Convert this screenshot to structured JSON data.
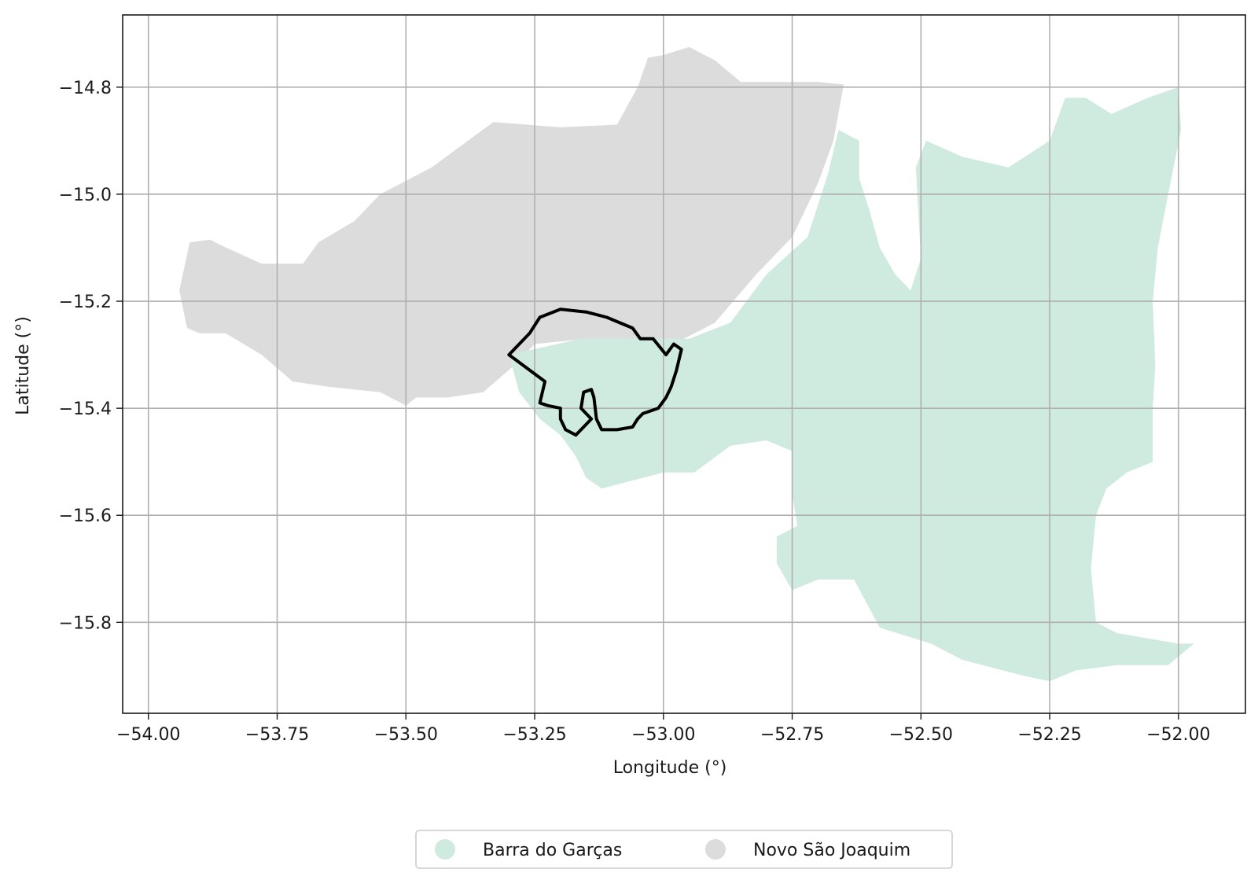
{
  "chart_data": {
    "type": "map",
    "title": "",
    "xlabel": "Longitude (°)",
    "ylabel": "Latitude (°)",
    "xlim": [
      -54.05,
      -51.87
    ],
    "ylim": [
      -15.97,
      -14.665
    ],
    "x_ticks": [
      {
        "value": -54.0,
        "label": "−54.00"
      },
      {
        "value": -53.75,
        "label": "−53.75"
      },
      {
        "value": -53.5,
        "label": "−53.50"
      },
      {
        "value": -53.25,
        "label": "−53.25"
      },
      {
        "value": -53.0,
        "label": "−53.00"
      },
      {
        "value": -52.75,
        "label": "−52.75"
      },
      {
        "value": -52.5,
        "label": "−52.50"
      },
      {
        "value": -52.25,
        "label": "−52.25"
      },
      {
        "value": -52.0,
        "label": "−52.00"
      }
    ],
    "y_ticks": [
      {
        "value": -14.8,
        "label": "−14.8"
      },
      {
        "value": -15.0,
        "label": "−15.0"
      },
      {
        "value": -15.2,
        "label": "−15.2"
      },
      {
        "value": -15.4,
        "label": "−15.4"
      },
      {
        "value": -15.6,
        "label": "−15.6"
      },
      {
        "value": -15.8,
        "label": "−15.8"
      }
    ],
    "grid": true,
    "legend_position": "below plot, centered",
    "regions": [
      {
        "name": "Novo São Joaquim",
        "color": "#dcdcdc",
        "polygon": [
          [
            -53.925,
            -15.25
          ],
          [
            -53.94,
            -15.18
          ],
          [
            -53.92,
            -15.09
          ],
          [
            -53.88,
            -15.085
          ],
          [
            -53.86,
            -15.095
          ],
          [
            -53.78,
            -15.13
          ],
          [
            -53.7,
            -15.13
          ],
          [
            -53.67,
            -15.09
          ],
          [
            -53.6,
            -15.05
          ],
          [
            -53.55,
            -15.0
          ],
          [
            -53.45,
            -14.95
          ],
          [
            -53.33,
            -14.865
          ],
          [
            -53.2,
            -14.875
          ],
          [
            -53.09,
            -14.87
          ],
          [
            -53.05,
            -14.8
          ],
          [
            -53.03,
            -14.745
          ],
          [
            -53.0,
            -14.74
          ],
          [
            -52.95,
            -14.725
          ],
          [
            -52.9,
            -14.75
          ],
          [
            -52.85,
            -14.79
          ],
          [
            -52.7,
            -14.79
          ],
          [
            -52.65,
            -14.795
          ],
          [
            -52.67,
            -14.9
          ],
          [
            -52.7,
            -14.98
          ],
          [
            -52.75,
            -15.08
          ],
          [
            -52.82,
            -15.15
          ],
          [
            -52.9,
            -15.24
          ],
          [
            -52.96,
            -15.27
          ],
          [
            -52.98,
            -15.32
          ],
          [
            -53.07,
            -15.3
          ],
          [
            -53.15,
            -15.27
          ],
          [
            -53.25,
            -15.28
          ],
          [
            -53.29,
            -15.32
          ],
          [
            -53.35,
            -15.37
          ],
          [
            -53.42,
            -15.38
          ],
          [
            -53.48,
            -15.38
          ],
          [
            -53.5,
            -15.395
          ],
          [
            -53.55,
            -15.37
          ],
          [
            -53.65,
            -15.36
          ],
          [
            -53.72,
            -15.35
          ],
          [
            -53.78,
            -15.3
          ],
          [
            -53.85,
            -15.26
          ],
          [
            -53.9,
            -15.26
          ]
        ]
      },
      {
        "name": "Barra do Garças",
        "color": "#cfeadf",
        "polygon": [
          [
            -53.3,
            -15.3
          ],
          [
            -53.16,
            -15.27
          ],
          [
            -53.05,
            -15.27
          ],
          [
            -52.95,
            -15.27
          ],
          [
            -52.87,
            -15.24
          ],
          [
            -52.8,
            -15.15
          ],
          [
            -52.72,
            -15.08
          ],
          [
            -52.68,
            -14.96
          ],
          [
            -52.66,
            -14.88
          ],
          [
            -52.62,
            -14.9
          ],
          [
            -52.62,
            -14.97
          ],
          [
            -52.6,
            -15.03
          ],
          [
            -52.58,
            -15.1
          ],
          [
            -52.55,
            -15.15
          ],
          [
            -52.52,
            -15.18
          ],
          [
            -52.5,
            -15.12
          ],
          [
            -52.51,
            -14.95
          ],
          [
            -52.49,
            -14.9
          ],
          [
            -52.42,
            -14.93
          ],
          [
            -52.33,
            -14.95
          ],
          [
            -52.25,
            -14.9
          ],
          [
            -52.22,
            -14.82
          ],
          [
            -52.18,
            -14.82
          ],
          [
            -52.13,
            -14.85
          ],
          [
            -52.06,
            -14.82
          ],
          [
            -52.0,
            -14.8
          ],
          [
            -51.995,
            -14.88
          ],
          [
            -52.02,
            -15.0
          ],
          [
            -52.04,
            -15.1
          ],
          [
            -52.05,
            -15.2
          ],
          [
            -52.045,
            -15.32
          ],
          [
            -52.05,
            -15.4
          ],
          [
            -52.05,
            -15.5
          ],
          [
            -52.1,
            -15.52
          ],
          [
            -52.14,
            -15.55
          ],
          [
            -52.16,
            -15.6
          ],
          [
            -52.17,
            -15.7
          ],
          [
            -52.16,
            -15.8
          ],
          [
            -52.12,
            -15.82
          ],
          [
            -52.06,
            -15.83
          ],
          [
            -52.0,
            -15.84
          ],
          [
            -51.97,
            -15.84
          ],
          [
            -52.02,
            -15.88
          ],
          [
            -52.12,
            -15.88
          ],
          [
            -52.2,
            -15.89
          ],
          [
            -52.25,
            -15.91
          ],
          [
            -52.3,
            -15.9
          ],
          [
            -52.42,
            -15.87
          ],
          [
            -52.48,
            -15.84
          ],
          [
            -52.58,
            -15.81
          ],
          [
            -52.63,
            -15.72
          ],
          [
            -52.7,
            -15.72
          ],
          [
            -52.75,
            -15.74
          ],
          [
            -52.78,
            -15.69
          ],
          [
            -52.78,
            -15.64
          ],
          [
            -52.74,
            -15.62
          ],
          [
            -52.75,
            -15.56
          ],
          [
            -52.75,
            -15.48
          ],
          [
            -52.8,
            -15.46
          ],
          [
            -52.87,
            -15.47
          ],
          [
            -52.94,
            -15.52
          ],
          [
            -53.0,
            -15.52
          ],
          [
            -53.08,
            -15.54
          ],
          [
            -53.12,
            -15.55
          ],
          [
            -53.15,
            -15.53
          ],
          [
            -53.17,
            -15.49
          ],
          [
            -53.2,
            -15.45
          ],
          [
            -53.24,
            -15.42
          ],
          [
            -53.28,
            -15.37
          ]
        ]
      }
    ],
    "overlay_outlines": [
      {
        "color": "#000000",
        "polygon": [
          [
            -53.3,
            -15.3
          ],
          [
            -53.26,
            -15.26
          ],
          [
            -53.24,
            -15.23
          ],
          [
            -53.2,
            -15.215
          ],
          [
            -53.15,
            -15.22
          ],
          [
            -53.11,
            -15.23
          ],
          [
            -53.06,
            -15.25
          ],
          [
            -53.045,
            -15.27
          ],
          [
            -53.02,
            -15.27
          ],
          [
            -52.995,
            -15.3
          ],
          [
            -52.98,
            -15.28
          ],
          [
            -52.965,
            -15.29
          ],
          [
            -52.975,
            -15.33
          ],
          [
            -52.985,
            -15.36
          ],
          [
            -52.995,
            -15.38
          ],
          [
            -53.01,
            -15.4
          ],
          [
            -53.04,
            -15.41
          ],
          [
            -53.05,
            -15.42
          ],
          [
            -53.06,
            -15.435
          ],
          [
            -53.09,
            -15.44
          ],
          [
            -53.12,
            -15.44
          ],
          [
            -53.13,
            -15.42
          ],
          [
            -53.135,
            -15.38
          ],
          [
            -53.14,
            -15.365
          ],
          [
            -53.155,
            -15.37
          ],
          [
            -53.16,
            -15.4
          ],
          [
            -53.14,
            -15.42
          ],
          [
            -53.16,
            -15.44
          ],
          [
            -53.17,
            -15.45
          ],
          [
            -53.19,
            -15.44
          ],
          [
            -53.2,
            -15.42
          ],
          [
            -53.2,
            -15.4
          ],
          [
            -53.225,
            -15.395
          ],
          [
            -53.24,
            -15.39
          ],
          [
            -53.23,
            -15.35
          ],
          [
            -53.3,
            -15.3
          ]
        ]
      }
    ],
    "legend": [
      {
        "label": "Barra do Garças",
        "color": "#cfeadf"
      },
      {
        "label": "Novo São Joaquim",
        "color": "#dcdcdc"
      }
    ]
  }
}
